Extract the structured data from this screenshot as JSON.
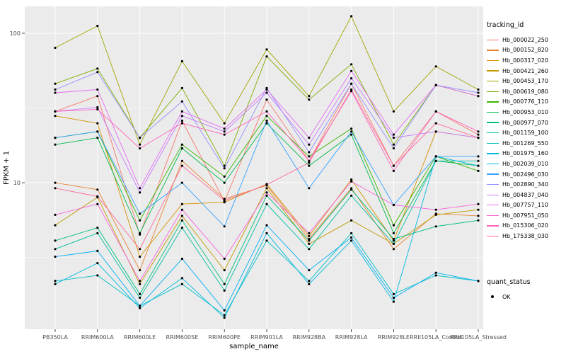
{
  "chart_data": {
    "type": "line",
    "title": "",
    "xlabel": "sample_name",
    "ylabel": "FPKM + 1",
    "y_scale": "log10",
    "y_ticks": [
      10,
      100
    ],
    "y_minor_ticks": [
      3.1623,
      31.623
    ],
    "y_domain_log10": [
      0.02,
      2.18
    ],
    "panel_bg": "#EBEBEB",
    "grid_color": "#FFFFFF",
    "point_color": "#000000",
    "tick_color": "#333333",
    "tick_label_color": "#4d4d4d",
    "categories": [
      "PB350LA",
      "RRIM600LA",
      "RRIM600LE",
      "RRIM600SE",
      "RRIM600PE",
      "RRIM901LA",
      "RRIM928BA",
      "RRIM928LA",
      "RRIM928LE",
      "RRII105LA_Control",
      "RRII105LA_Stressed"
    ],
    "series": [
      {
        "name": "Hb_000022_250",
        "color": "#F8766D",
        "values": [
          30,
          38,
          4.5,
          26,
          7.5,
          36,
          14,
          46,
          13,
          30,
          21
        ]
      },
      {
        "name": "Hb_000152_820",
        "color": "#EA8331",
        "values": [
          10,
          9,
          2.6,
          14,
          7.8,
          9.6,
          4.2,
          9.2,
          3.6,
          6.2,
          6.0
        ]
      },
      {
        "name": "Hb_000317_020",
        "color": "#D89000",
        "values": [
          28,
          25,
          3.2,
          7.2,
          7.4,
          9.8,
          4.4,
          10.5,
          4.1,
          22,
          20
        ]
      },
      {
        "name": "Hb_000421_260",
        "color": "#C09B00",
        "values": [
          5.2,
          8.0,
          2.1,
          6.0,
          2.6,
          9.2,
          3.9,
          5.6,
          3.9,
          6.1,
          6.6
        ]
      },
      {
        "name": "Hb_000453_170",
        "color": "#A3A500",
        "values": [
          80,
          112,
          18,
          65,
          25,
          78,
          38,
          130,
          30,
          60,
          42
        ]
      },
      {
        "name": "Hb_000619_080",
        "color": "#7CAE00",
        "values": [
          46,
          58,
          20,
          43,
          13,
          70,
          36,
          62,
          18,
          45,
          38
        ]
      },
      {
        "name": "Hb_000776_110",
        "color": "#39B600",
        "values": [
          20,
          22,
          5.6,
          18,
          11,
          28,
          15,
          23,
          5.2,
          15,
          12
        ]
      },
      {
        "name": "Hb_000953_010",
        "color": "#00BB4E",
        "values": [
          18,
          20,
          4.6,
          17,
          10,
          25,
          13,
          21,
          4.6,
          14,
          13
        ]
      },
      {
        "name": "Hb_000977_070",
        "color": "#00BF7D",
        "values": [
          4.1,
          5.0,
          1.8,
          5.6,
          2.1,
          8.2,
          4.1,
          9.0,
          4.2,
          5.1,
          5.6
        ]
      },
      {
        "name": "Hb_001159_100",
        "color": "#00C1A3",
        "values": [
          3.6,
          4.6,
          1.7,
          5.0,
          1.9,
          7.2,
          3.6,
          8.2,
          3.9,
          14,
          14
        ]
      },
      {
        "name": "Hb_001269_550",
        "color": "#00BFC4",
        "values": [
          2.2,
          2.4,
          1.5,
          2.1,
          1.3,
          4.1,
          2.2,
          4.6,
          1.8,
          2.4,
          2.2
        ]
      },
      {
        "name": "Hb_001975_160",
        "color": "#00BAE0",
        "values": [
          2.1,
          2.9,
          1.45,
          2.3,
          1.25,
          4.6,
          2.1,
          4.1,
          1.6,
          15,
          13
        ]
      },
      {
        "name": "Hb_002039_010",
        "color": "#00B0F6",
        "values": [
          3.2,
          3.5,
          1.5,
          3.1,
          1.4,
          5.2,
          2.6,
          4.3,
          1.7,
          2.5,
          2.2
        ]
      },
      {
        "name": "Hb_002496_030",
        "color": "#35A2FF",
        "values": [
          20,
          22,
          6.2,
          10,
          5.1,
          26,
          9.2,
          22,
          7.1,
          15,
          15
        ]
      },
      {
        "name": "Hb_002890_340",
        "color": "#9590FF",
        "values": [
          42,
          55,
          20,
          35,
          12.5,
          43,
          16,
          46,
          17,
          45,
          40
        ]
      },
      {
        "name": "Hb_004837_040",
        "color": "#C77CFF",
        "values": [
          30,
          32,
          8.6,
          28,
          22,
          40,
          18,
          50,
          20,
          22,
          20
        ]
      },
      {
        "name": "Hb_007757_110",
        "color": "#E76BF3",
        "values": [
          40,
          42,
          9.2,
          30,
          23,
          42,
          20,
          56,
          21,
          45,
          38
        ]
      },
      {
        "name": "Hb_007951_050",
        "color": "#FA62DB",
        "values": [
          6.1,
          7.2,
          2.2,
          6.6,
          3.1,
          8.6,
          4.6,
          10.2,
          7.1,
          6.6,
          7.2
        ]
      },
      {
        "name": "Hb_015306_020",
        "color": "#FF62BC",
        "values": [
          30,
          31,
          17,
          25,
          21,
          30,
          14,
          41,
          12,
          30,
          22
        ]
      },
      {
        "name": "Hb_175338_030",
        "color": "#FF6A98",
        "values": [
          9.2,
          8.1,
          3.6,
          13,
          7.6,
          9.7,
          13.6,
          42,
          13,
          25,
          20
        ]
      }
    ],
    "legend": {
      "color_title": "tracking_id",
      "shape_title": "quant_status",
      "shape_items": [
        {
          "label": "OK",
          "marker": "point",
          "color": "#000000"
        }
      ],
      "position": "right"
    }
  }
}
